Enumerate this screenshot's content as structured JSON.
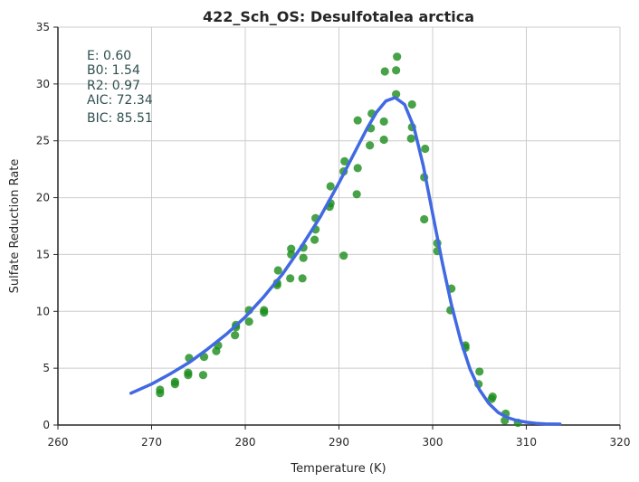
{
  "chart_data": {
    "type": "scatter",
    "title": "422_Sch_OS: Desulfotalea arctica",
    "xlabel": "Temperature (K)",
    "ylabel": "Sulfate Reduction Rate",
    "xlim": [
      260,
      320
    ],
    "ylim": [
      0,
      35
    ],
    "xticks": [
      260,
      270,
      280,
      290,
      300,
      310,
      320
    ],
    "yticks": [
      0,
      5,
      10,
      15,
      20,
      25,
      30,
      35
    ],
    "grid": true,
    "point_color": "#1a8c1a",
    "line_color": "#4169e1",
    "stats": [
      "E:  0.60",
      "B0:  1.54",
      "R2:  0.97",
      "AIC: 72.34",
      "BIC: 85.51"
    ],
    "points": {
      "x": [
        270.9,
        270.9,
        272.5,
        272.5,
        273.9,
        273.9,
        274.0,
        275.5,
        275.6,
        276.9,
        277.1,
        278.9,
        279.0,
        279.0,
        280.4,
        280.4,
        282.0,
        282.0,
        283.4,
        283.4,
        283.5,
        284.8,
        284.9,
        284.9,
        286.1,
        286.2,
        286.2,
        287.4,
        287.5,
        287.5,
        289.0,
        289.1,
        289.1,
        290.5,
        290.5,
        290.6,
        291.9,
        292.0,
        292.0,
        293.3,
        293.4,
        293.5,
        294.8,
        294.8,
        294.9,
        296.1,
        296.1,
        296.2,
        297.7,
        297.8,
        297.8,
        299.1,
        299.1,
        299.2,
        300.5,
        300.5,
        301.9,
        302.0,
        303.5,
        303.5,
        304.9,
        305.0,
        306.3,
        306.4,
        307.7,
        307.8,
        309.1
      ],
      "y": [
        2.8,
        3.1,
        3.6,
        3.8,
        4.4,
        4.6,
        5.9,
        4.4,
        6.0,
        6.5,
        7.0,
        7.9,
        8.6,
        8.8,
        9.1,
        10.1,
        9.9,
        10.1,
        12.3,
        12.5,
        13.6,
        12.9,
        15.0,
        15.5,
        12.9,
        14.7,
        15.6,
        16.3,
        17.2,
        18.2,
        19.2,
        19.5,
        21.0,
        14.9,
        22.3,
        23.2,
        20.3,
        22.6,
        26.8,
        24.6,
        26.1,
        27.4,
        25.1,
        26.7,
        31.1,
        29.1,
        31.2,
        32.4,
        25.2,
        26.2,
        28.2,
        18.1,
        21.8,
        24.3,
        15.3,
        16.0,
        10.1,
        12.0,
        6.8,
        7.0,
        3.6,
        4.7,
        2.3,
        2.5,
        0.4,
        1.0,
        0.2
      ]
    },
    "fit": {
      "x": [
        267.8,
        270,
        272,
        274,
        276,
        278,
        280,
        282,
        284,
        286,
        288,
        290,
        292,
        293,
        294,
        295,
        296,
        297,
        298,
        299,
        300,
        301,
        302,
        303,
        304,
        305,
        306,
        307,
        308,
        309,
        310,
        311,
        312,
        313.6
      ],
      "y": [
        2.8,
        3.6,
        4.5,
        5.5,
        6.7,
        8.0,
        9.5,
        11.3,
        13.3,
        15.7,
        18.3,
        21.3,
        24.5,
        26.1,
        27.5,
        28.5,
        28.8,
        28.2,
        26.2,
        22.8,
        18.6,
        14.4,
        10.6,
        7.4,
        4.9,
        3.1,
        1.9,
        1.1,
        0.65,
        0.4,
        0.25,
        0.15,
        0.1,
        0.08
      ]
    }
  }
}
